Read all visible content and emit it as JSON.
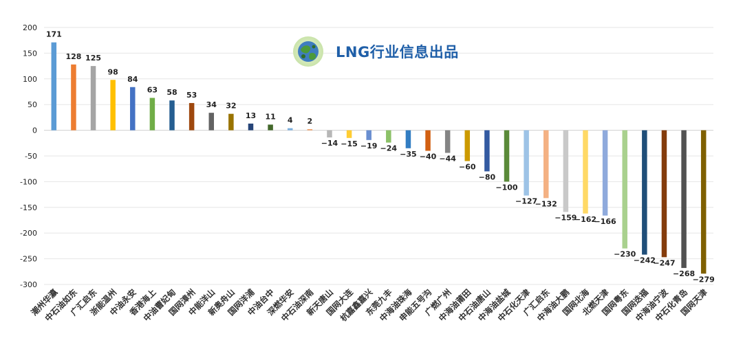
{
  "watermark": {
    "text": "LNG行业信息出品"
  },
  "chart_data": {
    "type": "bar",
    "title": "",
    "xlabel": "",
    "ylabel": "",
    "ylim": [
      -300,
      200
    ],
    "yticks": [
      200,
      150,
      100,
      50,
      0,
      -50,
      -100,
      -150,
      -200,
      -250,
      -300
    ],
    "grid": true,
    "categories": [
      "潮州华瀛",
      "中石油如东",
      "广汇启东",
      "浙能温州",
      "中油永安",
      "香港海上",
      "中油曹妃甸",
      "国网漳州",
      "中能洋山",
      "新奥舟山",
      "国网洋浦",
      "中油台中",
      "深燃华安",
      "中石油深南",
      "新天唐山",
      "国网大连",
      "杭嘉鑫嘉兴",
      "东莞九丰",
      "中海油珠海",
      "申能五号沟",
      "广燃广州",
      "中海油莆田",
      "中石油唐山",
      "中海油盐城",
      "中石化天津",
      "广汇启东",
      "中海油大鹏",
      "国网北海",
      "北燃天津",
      "国网粤东",
      "国网迭福",
      "中海油宁波",
      "中石化青岛",
      "国网天津"
    ],
    "values": [
      171,
      128,
      125,
      98,
      84,
      63,
      58,
      53,
      34,
      32,
      13,
      11,
      4,
      2,
      -14,
      -15,
      -19,
      -24,
      -35,
      -40,
      -44,
      -60,
      -80,
      -100,
      -127,
      -132,
      -159,
      -162,
      -166,
      -230,
      -242,
      -247,
      -268,
      -279
    ],
    "value_labels": [
      "171",
      "128",
      "125",
      "98",
      "84",
      "63",
      "58",
      "53",
      "34",
      "32",
      "13",
      "11",
      "4",
      "2",
      "−14",
      "−15",
      "−19",
      "−24",
      "−35",
      "−40",
      "−44",
      "−60",
      "−80",
      "−100",
      "−127",
      "−132",
      "−159",
      "−162",
      "−166",
      "−230",
      "−242",
      "−247",
      "−268",
      "−279"
    ],
    "colors": [
      "#5b9bd5",
      "#ed7d31",
      "#a5a5a5",
      "#ffc000",
      "#4472c4",
      "#70ad47",
      "#255e91",
      "#9e480e",
      "#636363",
      "#997300",
      "#264478",
      "#43682b",
      "#7cafdd",
      "#f1975a",
      "#b7b7b7",
      "#ffcd33",
      "#698ed0",
      "#8cc168",
      "#327dc2",
      "#d26012",
      "#848484",
      "#cc9a00",
      "#335aa1",
      "#5a8a39",
      "#9dc3e6",
      "#f4b183",
      "#c9c9c9",
      "#ffd966",
      "#8faadc",
      "#a9d18e",
      "#1f4e79",
      "#843c0c",
      "#525252",
      "#7f6000"
    ]
  }
}
